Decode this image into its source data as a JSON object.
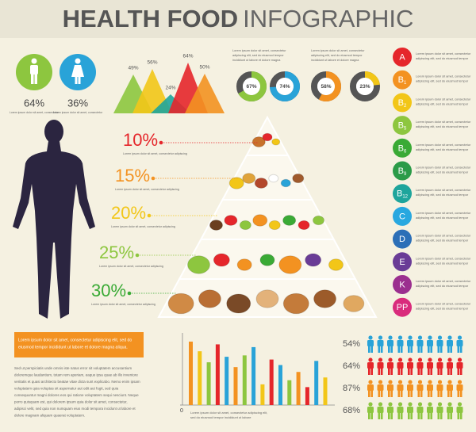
{
  "header": {
    "title_bold": "HEALTH FOOD",
    "title_light": "INFOGRAPHIC"
  },
  "gender": [
    {
      "label": "64%",
      "note": "Lorem ipsum dolor sit amet, consectetur"
    },
    {
      "label": "36%",
      "note": "Lorem ipsum dolor sit amet, consectetur"
    }
  ],
  "mountains": {
    "values": [
      49,
      56,
      24,
      64,
      50
    ],
    "value_labels": [
      "49%",
      "56%",
      "24%",
      "64%",
      "50%"
    ]
  },
  "top_text": {
    "left": [
      "Lorem ipsum dolor sit amet, consectetur",
      "adipiscing elit, sed do eiusmod tempor",
      "incididunt ut labore et dolore magna"
    ],
    "right": [
      "Lorem ipsum dolor sit amet, consectetur",
      "adipiscing elit, sed do eiusmod tempor",
      "incididunt ut labore et dolore magna"
    ]
  },
  "donuts": {
    "values": [
      67,
      74,
      58,
      23
    ],
    "value_labels": [
      "67%",
      "74%",
      "58%",
      "23%"
    ]
  },
  "pyramid": {
    "levels": [
      {
        "label": "10%",
        "text": "Lorem ipsum dolor sit amet, consectetur adipiscing"
      },
      {
        "label": "15%",
        "text": "Lorem ipsum dolor sit amet, consectetur adipiscing"
      },
      {
        "label": "20%",
        "text": "Lorem ipsum dolor sit amet, consectetur adipiscing"
      },
      {
        "label": "25%",
        "text": "Lorem ipsum dolor sit amet, consectetur adipiscing"
      },
      {
        "label": "30%",
        "text": "Lorem ipsum dolor sit amet, consectetur adipiscing"
      }
    ]
  },
  "vitamins": {
    "items": [
      {
        "letter": "A"
      },
      {
        "letter": "B",
        "sub": "1"
      },
      {
        "letter": "B",
        "sub": "2"
      },
      {
        "letter": "B",
        "sub": "5"
      },
      {
        "letter": "B",
        "sub": "6"
      },
      {
        "letter": "B",
        "sub": "9"
      },
      {
        "letter": "B",
        "sub": "12"
      },
      {
        "letter": "C"
      },
      {
        "letter": "D"
      },
      {
        "letter": "E"
      },
      {
        "letter": "K"
      },
      {
        "letter": "PP"
      }
    ],
    "text": [
      "Lorem ipsum dolor sit amet, consectetur",
      "adipiscing elit, sed do eiusmod tempor"
    ]
  },
  "callout": [
    "Lorem ipsum dolor sit amet, consectetur adipiscing elit, sed do",
    "eiusmod tempor incididunt ut labore et dolore magna aliqua."
  ],
  "paragraph": [
    "Sed ut perspiciatis unde omnis iste natus error sit voluptatem accusantium",
    "doloremque laudantium, totam rem aperiam, eaque ipsa quae ab illo inventore",
    "veritatis et quasi architecto beatae vitae dicta sunt explicabo. Nemo enim ipsam",
    "voluptatem quia voluptas sit aspernatur aut odit aut fugit, sed quia",
    "consequuntur magni dolores eos qui ratione voluptatem sequi nesciunt. Neque",
    "porro quisquam est, qui dolorem ipsum quia dolor sit amet, consectetur,",
    "adipisci velit, sed quia non numquam eius modi tempora incidunt ut labore et",
    "dolore magnam aliquam quaerat voluptatem."
  ],
  "bar_chart": {
    "ylim": [
      0,
      100
    ],
    "yticks": [
      0
    ],
    "values": [
      92,
      78,
      62,
      88,
      70,
      55,
      72,
      84,
      30,
      66,
      58,
      36,
      48,
      26,
      64,
      40
    ],
    "colors": [
      "#f39221",
      "#f2c618",
      "#8dc63f",
      "#e5262b",
      "#29a3d8",
      "#f39221",
      "#8dc63f",
      "#29a3d8",
      "#f2c618",
      "#e5262b",
      "#29a3d8",
      "#8dc63f",
      "#f39221",
      "#e5262b",
      "#29a3d8",
      "#f2c618"
    ],
    "caption": [
      "Lorem ipsum dolor sit amet, consectetur adipiscing elit,",
      "sed do eiusmod tempor incididunt ut labore"
    ]
  },
  "people": [
    {
      "label": "54%",
      "color": "#29a3d8"
    },
    {
      "label": "64%",
      "color": "#e5262b"
    },
    {
      "label": "87%",
      "color": "#f39221"
    },
    {
      "label": "68%",
      "color": "#8dc63f"
    }
  ]
}
